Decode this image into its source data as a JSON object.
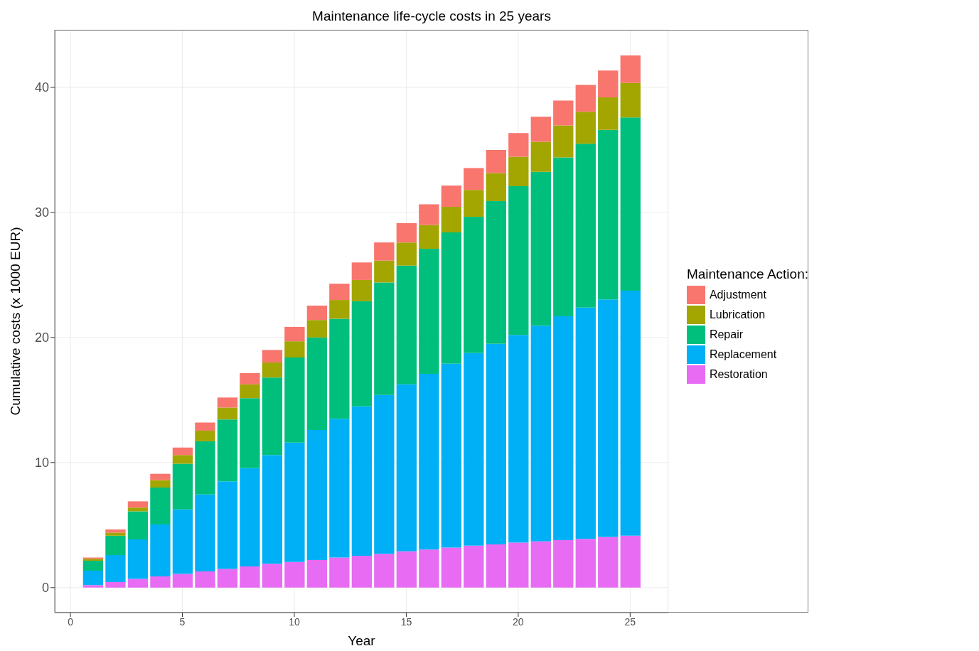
{
  "chart_data": {
    "type": "bar",
    "title": "Maintenance life-cycle costs in 25 years",
    "xlabel": "Year",
    "ylabel": "Cumulative costs (x 1000 EUR)",
    "legend_title": "Maintenance Action:",
    "x": [
      1,
      2,
      3,
      4,
      5,
      6,
      7,
      8,
      9,
      10,
      11,
      12,
      13,
      14,
      15,
      16,
      17,
      18,
      19,
      20,
      21,
      22,
      23,
      24,
      25
    ],
    "stacked": true,
    "xlim": [
      -0.7,
      26.7
    ],
    "xticks": [
      0,
      5,
      10,
      15,
      20,
      25
    ],
    "ylim": [
      -2,
      44.6
    ],
    "yticks": [
      0,
      10,
      20,
      30,
      40
    ],
    "grid": true,
    "legend": "right",
    "series": [
      {
        "name": "Restoration",
        "color": "#e76bf3",
        "values": [
          0.2,
          0.45,
          0.7,
          0.9,
          1.1,
          1.3,
          1.5,
          1.7,
          1.9,
          2.05,
          2.2,
          2.4,
          2.55,
          2.7,
          2.9,
          3.05,
          3.2,
          3.35,
          3.45,
          3.6,
          3.7,
          3.8,
          3.9,
          4.05,
          4.15
        ]
      },
      {
        "name": "Replacement",
        "color": "#00b0f6",
        "values": [
          1.15,
          2.15,
          3.15,
          4.15,
          5.15,
          6.15,
          7.0,
          7.85,
          8.7,
          9.55,
          10.4,
          11.1,
          11.95,
          12.7,
          13.35,
          14.05,
          14.7,
          15.4,
          16.05,
          16.6,
          17.25,
          17.9,
          18.5,
          19.0,
          19.6
        ]
      },
      {
        "name": "Repair",
        "color": "#00bf7d",
        "values": [
          0.8,
          1.55,
          2.25,
          2.95,
          3.65,
          4.25,
          4.95,
          5.6,
          6.2,
          6.8,
          7.4,
          8.0,
          8.4,
          9.0,
          9.5,
          10.0,
          10.5,
          10.9,
          11.4,
          11.9,
          12.3,
          12.7,
          13.1,
          13.55,
          13.85
        ]
      },
      {
        "name": "Lubrication",
        "color": "#a3a500",
        "values": [
          0.15,
          0.25,
          0.3,
          0.6,
          0.7,
          0.85,
          0.95,
          1.1,
          1.2,
          1.3,
          1.4,
          1.5,
          1.7,
          1.75,
          1.85,
          1.9,
          2.05,
          2.15,
          2.25,
          2.35,
          2.4,
          2.55,
          2.55,
          2.6,
          2.75
        ]
      },
      {
        "name": "Adjustment",
        "color": "#f8766d",
        "values": [
          0.1,
          0.25,
          0.5,
          0.5,
          0.6,
          0.65,
          0.8,
          0.9,
          1.0,
          1.15,
          1.15,
          1.3,
          1.4,
          1.45,
          1.55,
          1.65,
          1.7,
          1.75,
          1.85,
          1.9,
          2.0,
          2.0,
          2.15,
          2.15,
          2.2
        ]
      }
    ]
  }
}
